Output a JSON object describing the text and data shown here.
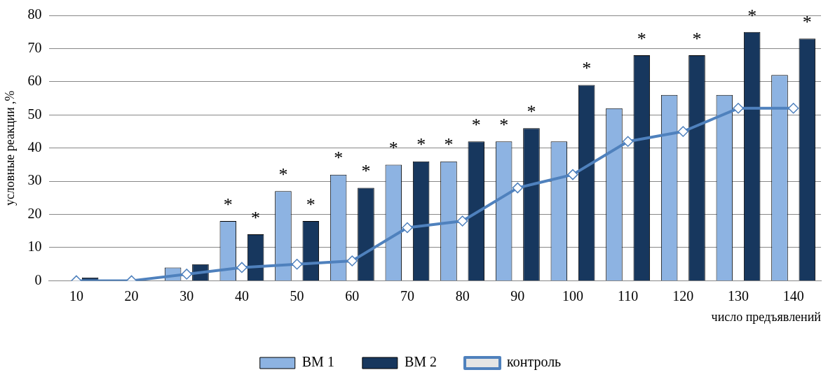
{
  "chart_data": {
    "type": "bar",
    "xlabel": "число предъявлений",
    "ylabel": "условные реакции ,%",
    "categories": [
      "10",
      "20",
      "30",
      "40",
      "50",
      "60",
      "70",
      "80",
      "90",
      "100",
      "110",
      "120",
      "130",
      "140"
    ],
    "series": [
      {
        "name": "ВМ 1",
        "color": "#8db3e2",
        "values": [
          0,
          0,
          4,
          18,
          27,
          32,
          35,
          36,
          42,
          42,
          52,
          56,
          56,
          62
        ],
        "value_labels": [
          null,
          null,
          null,
          "*",
          "*",
          "*",
          "*",
          "*",
          "*",
          null,
          null,
          null,
          null,
          null
        ]
      },
      {
        "name": "ВМ 2",
        "color": "#17375e",
        "values": [
          1,
          0,
          5,
          14,
          18,
          28,
          36,
          42,
          46,
          59,
          68,
          68,
          75,
          73
        ],
        "value_labels": [
          null,
          null,
          null,
          "*",
          "*",
          "*",
          "*",
          "*",
          "*",
          "*",
          "*",
          "*",
          "*",
          "*"
        ]
      },
      {
        "name": "контроль",
        "type": "line",
        "color": "#4f81bd",
        "marker": "diamond",
        "values": [
          0,
          0,
          2,
          4,
          5,
          6,
          16,
          18,
          28,
          32,
          42,
          45,
          52,
          52
        ]
      }
    ],
    "ylim": [
      0,
      80
    ],
    "yticks": [
      0,
      10,
      20,
      30,
      40,
      50,
      60,
      70,
      80
    ],
    "grid": "y",
    "legend": "bottom"
  }
}
